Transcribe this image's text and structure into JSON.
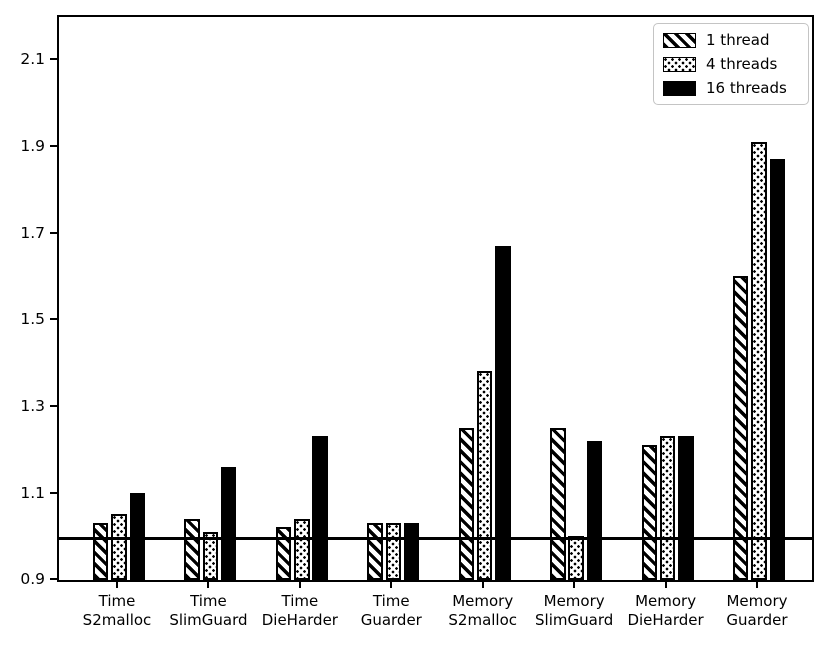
{
  "figure": {
    "background": "#ffffff",
    "foreground": "#000000",
    "legend_border_color": "#c4c4c4"
  },
  "chart_data": {
    "type": "bar",
    "title": "",
    "xlabel": "",
    "ylabel": "",
    "grid": false,
    "legend_position": "top-right",
    "baseline": 1.0,
    "ylim": [
      0.894,
      2.202
    ],
    "yticks": [
      0.9,
      1.1,
      1.3,
      1.5,
      1.7,
      1.9,
      2.1
    ],
    "categories": [
      "Time\nS2malloc",
      "Time\nSlimGuard",
      "Time\nDieHarder",
      "Time\nGuarder",
      "Memory\nS2malloc",
      "Memory\nSlimGuard",
      "Memory\nDieHarder",
      "Memory\nGuarder"
    ],
    "series": [
      {
        "name": "1 thread",
        "pattern": "diagonal-hatch",
        "values": [
          1.03,
          1.04,
          1.02,
          1.03,
          1.25,
          1.25,
          1.21,
          1.6
        ]
      },
      {
        "name": "4 threads",
        "pattern": "dots",
        "values": [
          1.05,
          1.01,
          1.04,
          1.03,
          1.38,
          1.0,
          1.23,
          1.91
        ]
      },
      {
        "name": "16 threads",
        "pattern": "solid",
        "values": [
          1.1,
          1.16,
          1.23,
          1.03,
          1.67,
          1.22,
          1.23,
          1.87
        ]
      }
    ]
  }
}
